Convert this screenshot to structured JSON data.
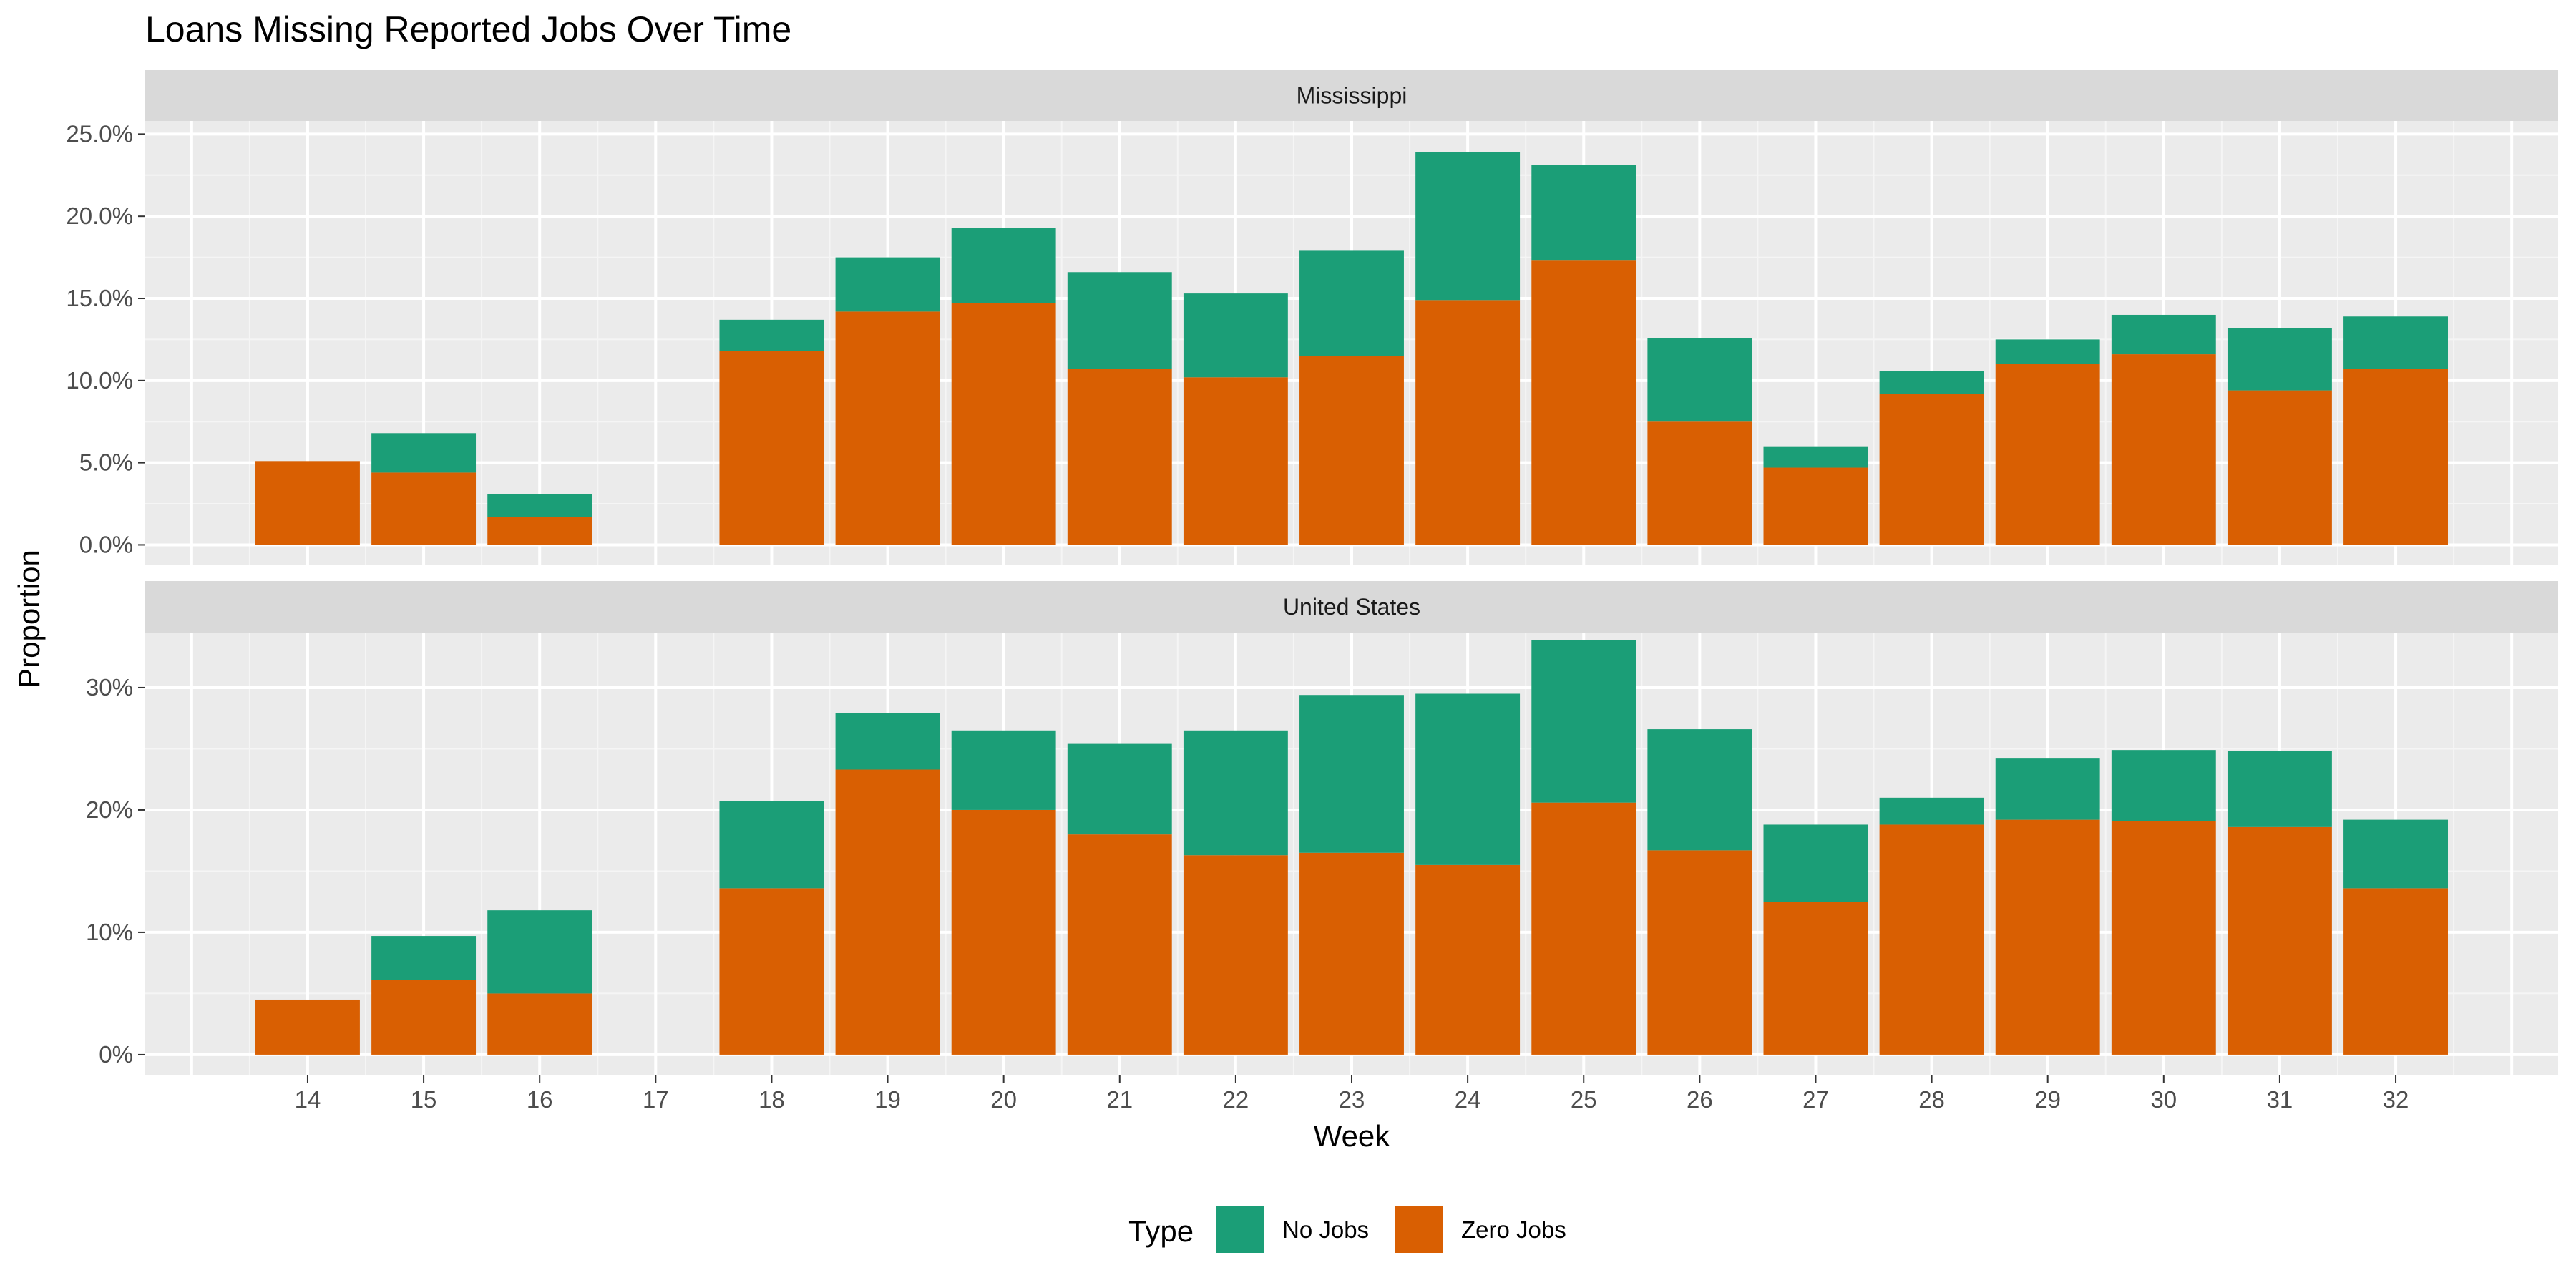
{
  "chart_data": {
    "type": "bar",
    "stacked": true,
    "title": "Loans Missing Reported Jobs Over Time",
    "xlabel": "Week",
    "ylabel": "Proportion",
    "categories": [
      "14",
      "15",
      "16",
      "17",
      "18",
      "19",
      "20",
      "21",
      "22",
      "23",
      "24",
      "25",
      "26",
      "27",
      "28",
      "29",
      "30",
      "31",
      "32"
    ],
    "legend": {
      "title": "Type",
      "position": "bottom",
      "entries": [
        {
          "name": "No Jobs",
          "color": "#1b9e77"
        },
        {
          "name": "Zero Jobs",
          "color": "#d95f02"
        }
      ]
    },
    "grid": true,
    "panels": [
      {
        "strip": "Mississippi",
        "ylim": [
          -0.012,
          0.258
        ],
        "yticks": [
          0,
          0.05,
          0.1,
          0.15,
          0.2,
          0.25
        ],
        "ytick_labels": [
          "0.0%",
          "5.0%",
          "10.0%",
          "15.0%",
          "20.0%",
          "25.0%"
        ],
        "series": [
          {
            "name": "Zero Jobs",
            "color": "#d95f02",
            "values": [
              0.051,
              0.044,
              0.017,
              null,
              0.118,
              0.142,
              0.147,
              0.107,
              0.102,
              0.115,
              0.149,
              0.173,
              0.075,
              0.047,
              0.092,
              0.11,
              0.116,
              0.094,
              0.107
            ]
          },
          {
            "name": "No Jobs",
            "color": "#1b9e77",
            "values": [
              0.0,
              0.024,
              0.014,
              null,
              0.019,
              0.033,
              0.046,
              0.059,
              0.051,
              0.064,
              0.09,
              0.058,
              0.051,
              0.013,
              0.014,
              0.015,
              0.024,
              0.038,
              0.032
            ]
          }
        ]
      },
      {
        "strip": "United States",
        "ylim": [
          -0.017,
          0.345
        ],
        "yticks": [
          0,
          0.1,
          0.2,
          0.3
        ],
        "ytick_labels": [
          "0%",
          "10%",
          "20%",
          "30%"
        ],
        "series": [
          {
            "name": "Zero Jobs",
            "color": "#d95f02",
            "values": [
              0.045,
              0.061,
              0.05,
              null,
              0.136,
              0.233,
              0.2,
              0.18,
              0.163,
              0.165,
              0.155,
              0.206,
              0.167,
              0.125,
              0.188,
              0.192,
              0.191,
              0.186,
              0.136
            ]
          },
          {
            "name": "No Jobs",
            "color": "#1b9e77",
            "values": [
              0.0,
              0.036,
              0.068,
              null,
              0.071,
              0.046,
              0.065,
              0.074,
              0.102,
              0.129,
              0.14,
              0.133,
              0.099,
              0.063,
              0.022,
              0.05,
              0.058,
              0.062,
              0.056
            ]
          }
        ]
      }
    ]
  }
}
